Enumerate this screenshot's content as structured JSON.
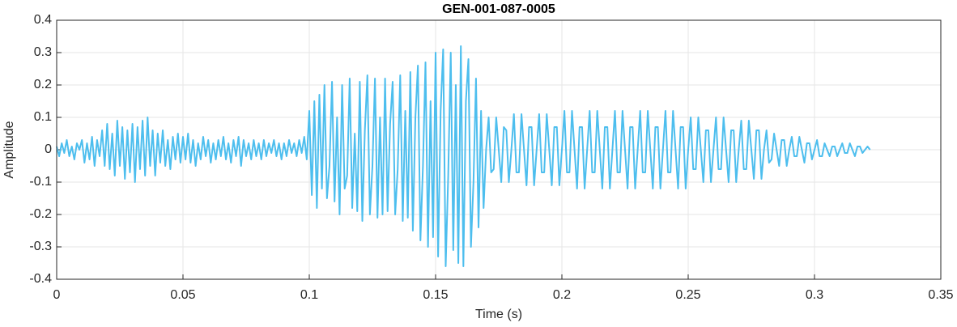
{
  "chart_data": {
    "type": "line",
    "title": "GEN-001-087-0005",
    "xlabel": "Time (s)",
    "ylabel": "Amplitude",
    "color": "#4dbeee",
    "grid": true,
    "xlim": [
      0,
      0.35
    ],
    "xticks": [
      0,
      0.05,
      0.1,
      0.15,
      0.2,
      0.25,
      0.3,
      0.35
    ],
    "ylim": [
      -0.4,
      0.4
    ],
    "yticks": [
      -0.4,
      -0.3,
      -0.2,
      -0.1,
      0,
      0.1,
      0.2,
      0.3,
      0.4
    ],
    "x": [
      0,
      0.001,
      0.002,
      0.003,
      0.004,
      0.005,
      0.006,
      0.007,
      0.008,
      0.009,
      0.01,
      0.011,
      0.012,
      0.013,
      0.014,
      0.015,
      0.016,
      0.017,
      0.018,
      0.019,
      0.02,
      0.021,
      0.022,
      0.023,
      0.024,
      0.025,
      0.026,
      0.027,
      0.028,
      0.029,
      0.03,
      0.031,
      0.032,
      0.033,
      0.034,
      0.035,
      0.036,
      0.037,
      0.038,
      0.039,
      0.04,
      0.041,
      0.042,
      0.043,
      0.044,
      0.045,
      0.046,
      0.047,
      0.048,
      0.049,
      0.05,
      0.051,
      0.052,
      0.053,
      0.054,
      0.055,
      0.056,
      0.057,
      0.058,
      0.059,
      0.06,
      0.061,
      0.062,
      0.063,
      0.064,
      0.065,
      0.066,
      0.067,
      0.068,
      0.069,
      0.07,
      0.071,
      0.072,
      0.073,
      0.074,
      0.075,
      0.076,
      0.077,
      0.078,
      0.079,
      0.08,
      0.081,
      0.082,
      0.083,
      0.084,
      0.085,
      0.086,
      0.087,
      0.088,
      0.089,
      0.09,
      0.091,
      0.092,
      0.093,
      0.094,
      0.095,
      0.096,
      0.097,
      0.098,
      0.099,
      0.1,
      0.101,
      0.102,
      0.103,
      0.104,
      0.105,
      0.106,
      0.107,
      0.108,
      0.109,
      0.11,
      0.111,
      0.112,
      0.113,
      0.114,
      0.115,
      0.116,
      0.117,
      0.118,
      0.119,
      0.12,
      0.121,
      0.122,
      0.123,
      0.124,
      0.125,
      0.126,
      0.127,
      0.128,
      0.129,
      0.13,
      0.131,
      0.132,
      0.133,
      0.134,
      0.135,
      0.136,
      0.137,
      0.138,
      0.139,
      0.14,
      0.141,
      0.142,
      0.143,
      0.144,
      0.145,
      0.146,
      0.147,
      0.148,
      0.149,
      0.15,
      0.151,
      0.152,
      0.153,
      0.154,
      0.155,
      0.156,
      0.157,
      0.158,
      0.159,
      0.16,
      0.161,
      0.162,
      0.163,
      0.164,
      0.165,
      0.166,
      0.167,
      0.168,
      0.169,
      0.17,
      0.171,
      0.172,
      0.173,
      0.174,
      0.175,
      0.176,
      0.177,
      0.178,
      0.179,
      0.18,
      0.181,
      0.182,
      0.183,
      0.184,
      0.185,
      0.186,
      0.187,
      0.188,
      0.189,
      0.19,
      0.191,
      0.192,
      0.193,
      0.194,
      0.195,
      0.196,
      0.197,
      0.198,
      0.199,
      0.2,
      0.201,
      0.202,
      0.203,
      0.204,
      0.205,
      0.206,
      0.207,
      0.208,
      0.209,
      0.21,
      0.211,
      0.212,
      0.213,
      0.214,
      0.215,
      0.216,
      0.217,
      0.218,
      0.219,
      0.22,
      0.221,
      0.222,
      0.223,
      0.224,
      0.225,
      0.226,
      0.227,
      0.228,
      0.229,
      0.23,
      0.231,
      0.232,
      0.233,
      0.234,
      0.235,
      0.236,
      0.237,
      0.238,
      0.239,
      0.24,
      0.241,
      0.242,
      0.243,
      0.244,
      0.245,
      0.246,
      0.247,
      0.248,
      0.249,
      0.25,
      0.251,
      0.252,
      0.253,
      0.254,
      0.255,
      0.256,
      0.257,
      0.258,
      0.259,
      0.26,
      0.261,
      0.262,
      0.263,
      0.264,
      0.265,
      0.266,
      0.267,
      0.268,
      0.269,
      0.27,
      0.271,
      0.272,
      0.273,
      0.274,
      0.275,
      0.276,
      0.277,
      0.278,
      0.279,
      0.28,
      0.281,
      0.282,
      0.283,
      0.284,
      0.285,
      0.286,
      0.287,
      0.288,
      0.289,
      0.29,
      0.291,
      0.292,
      0.293,
      0.294,
      0.295,
      0.296,
      0.297,
      0.298,
      0.299,
      0.3,
      0.301,
      0.302,
      0.303,
      0.304,
      0.305,
      0.306,
      0.307,
      0.308,
      0.309,
      0.31,
      0.311,
      0.312,
      0.313,
      0.314,
      0.315,
      0.316,
      0.317,
      0.318,
      0.319,
      0.32,
      0.321,
      0.322
    ],
    "values": [
      0.01,
      -0.02,
      0.02,
      -0.01,
      0.03,
      -0.02,
      0.01,
      -0.03,
      0.02,
      0,
      0.03,
      -0.04,
      0.02,
      -0.03,
      0.04,
      -0.05,
      0.03,
      -0.02,
      0.06,
      -0.05,
      0.08,
      -0.06,
      0.05,
      -0.08,
      0.09,
      -0.05,
      0.07,
      -0.09,
      0.06,
      -0.07,
      0.08,
      -0.1,
      0.07,
      -0.06,
      0.09,
      -0.08,
      0.1,
      -0.05,
      0.06,
      -0.08,
      0.05,
      -0.04,
      0.06,
      -0.05,
      0.03,
      -0.06,
      0.04,
      -0.03,
      0.05,
      -0.04,
      0.04,
      -0.03,
      0.05,
      -0.04,
      0.03,
      -0.05,
      0.02,
      -0.03,
      0.04,
      -0.02,
      0.03,
      -0.04,
      0.02,
      -0.03,
      0.03,
      -0.02,
      0.04,
      -0.03,
      0.02,
      -0.04,
      0.03,
      -0.02,
      0.04,
      -0.05,
      0.03,
      -0.02,
      0.02,
      -0.03,
      0.03,
      -0.02,
      0.02,
      -0.03,
      0.03,
      -0.02,
      0.02,
      -0.01,
      0.03,
      -0.02,
      0.02,
      -0.03,
      0.02,
      -0.02,
      0.03,
      -0.01,
      0.02,
      -0.02,
      0.03,
      -0.01,
      0.04,
      -0.03,
      0.12,
      -0.14,
      0.15,
      -0.18,
      0.17,
      -0.12,
      0.2,
      -0.15,
      -0.05,
      0.21,
      -0.16,
      0.1,
      -0.2,
      0.2,
      -0.12,
      -0.08,
      0.22,
      -0.18,
      0.05,
      -0.19,
      0.21,
      -0.22,
      0.06,
      0.23,
      -0.2,
      -0.05,
      0.22,
      -0.21,
      0.1,
      -0.2,
      0.22,
      -0.19,
      0.08,
      0.21,
      -0.2,
      -0.06,
      0.23,
      -0.22,
      0.12,
      -0.21,
      0.24,
      -0.25,
      0.1,
      0.26,
      -0.28,
      -0.05,
      0.27,
      -0.3,
      0.15,
      -0.27,
      0.3,
      -0.33,
      0.12,
      0.31,
      -0.36,
      -0.08,
      0.3,
      -0.31,
      0.2,
      -0.35,
      0.32,
      -0.36,
      0.15,
      0.28,
      -0.3,
      -0.1,
      0.22,
      -0.24,
      0.12,
      -0.18,
      0,
      0.1,
      -0.07,
      -0.06,
      0.1,
      0,
      -0.1,
      0.07,
      0.06,
      -0.1,
      0,
      0.11,
      -0.07,
      -0.07,
      0.11,
      0,
      -0.11,
      0.07,
      0.07,
      -0.11,
      0,
      0.11,
      -0.07,
      -0.07,
      0.11,
      0,
      -0.11,
      0.07,
      0.07,
      -0.11,
      0,
      0.12,
      -0.07,
      -0.07,
      0.12,
      0,
      -0.12,
      0.07,
      0.07,
      -0.12,
      0,
      0.12,
      -0.07,
      -0.07,
      0.12,
      0,
      -0.12,
      0.07,
      0.07,
      -0.12,
      0,
      0.12,
      -0.07,
      -0.07,
      0.12,
      0,
      -0.12,
      0.07,
      0.07,
      -0.12,
      0,
      0.12,
      -0.07,
      -0.07,
      0.12,
      0,
      -0.12,
      0.07,
      0.07,
      -0.12,
      0,
      0.12,
      -0.07,
      -0.07,
      0.12,
      0,
      -0.12,
      0.07,
      0.07,
      -0.12,
      0,
      0.1,
      -0.06,
      -0.06,
      0.1,
      0,
      -0.1,
      0.06,
      0.06,
      -0.1,
      0,
      0.1,
      -0.06,
      -0.06,
      0.1,
      0,
      -0.1,
      0.06,
      0.06,
      -0.1,
      0,
      0.09,
      -0.06,
      -0.06,
      0.09,
      0,
      -0.09,
      0.06,
      0.06,
      -0.09,
      0,
      0.06,
      -0.04,
      -0.03,
      0.05,
      0,
      -0.05,
      0.03,
      0.03,
      -0.05,
      0,
      0.04,
      -0.02,
      -0.02,
      0.04,
      0,
      -0.04,
      0.02,
      0.02,
      -0.03,
      0,
      0.03,
      -0.02,
      -0.02,
      0.02,
      0,
      -0.02,
      0.01,
      0.01,
      -0.02,
      0,
      0.02,
      -0.01,
      -0.01,
      0.02,
      0,
      -0.02,
      0.01,
      0.01,
      -0.01,
      0,
      0.01,
      0
    ]
  }
}
